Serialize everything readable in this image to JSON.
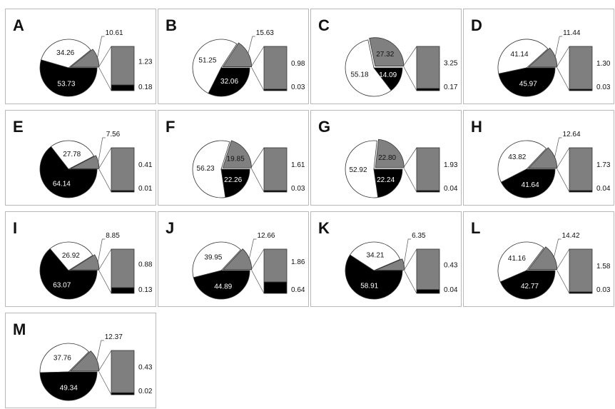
{
  "colors": {
    "black_slice": "#000000",
    "gray_slice": "#808080",
    "white_slice": "#ffffff",
    "bar_gray": "#7f7f7f",
    "bar_black": "#000000",
    "outline": "#333333",
    "panel_border": "#b8b8b8"
  },
  "chart_data": [
    {
      "type": "pie",
      "panel": "A",
      "slices": {
        "white": 34.26,
        "gray": 10.61,
        "black": 53.73
      },
      "bar": {
        "gray": 1.23,
        "black": 0.18
      }
    },
    {
      "type": "pie",
      "panel": "B",
      "slices": {
        "white": 51.25,
        "gray": 15.63,
        "black": 32.06
      },
      "bar": {
        "gray": 0.98,
        "black": 0.03
      }
    },
    {
      "type": "pie",
      "panel": "C",
      "slices": {
        "white": 55.18,
        "gray": 27.32,
        "black": 14.09
      },
      "bar": {
        "gray": 3.25,
        "black": 0.17
      }
    },
    {
      "type": "pie",
      "panel": "D",
      "slices": {
        "white": 41.14,
        "gray": 11.44,
        "black": 45.97
      },
      "bar": {
        "gray": 1.3,
        "black": 0.03
      }
    },
    {
      "type": "pie",
      "panel": "E",
      "slices": {
        "white": 27.78,
        "gray": 7.56,
        "black": 64.14
      },
      "bar": {
        "gray": 0.41,
        "black": 0.01
      }
    },
    {
      "type": "pie",
      "panel": "F",
      "slices": {
        "white": 56.23,
        "gray": 19.85,
        "black": 22.26
      },
      "bar": {
        "gray": 1.61,
        "black": 0.03
      }
    },
    {
      "type": "pie",
      "panel": "G",
      "slices": {
        "white": 52.92,
        "gray": 22.8,
        "black": 22.24
      },
      "bar": {
        "gray": 1.93,
        "black": 0.04
      }
    },
    {
      "type": "pie",
      "panel": "H",
      "slices": {
        "white": 43.82,
        "gray": 12.64,
        "black": 41.64
      },
      "bar": {
        "gray": 1.73,
        "black": 0.04
      }
    },
    {
      "type": "pie",
      "panel": "I",
      "slices": {
        "white": 26.92,
        "gray": 8.85,
        "black": 63.07
      },
      "bar": {
        "gray": 0.88,
        "black": 0.13
      }
    },
    {
      "type": "pie",
      "panel": "J",
      "slices": {
        "white": 39.95,
        "gray": 12.66,
        "black": 44.89
      },
      "bar": {
        "gray": 1.86,
        "black": 0.64
      }
    },
    {
      "type": "pie",
      "panel": "K",
      "slices": {
        "white": 34.21,
        "gray": 6.35,
        "black": 58.91
      },
      "bar": {
        "gray": 0.43,
        "black": 0.04
      }
    },
    {
      "type": "pie",
      "panel": "L",
      "slices": {
        "white": 41.16,
        "gray": 14.42,
        "black": 42.77
      },
      "bar": {
        "gray": 1.58,
        "black": 0.03
      }
    },
    {
      "type": "pie",
      "panel": "M",
      "slices": {
        "white": 37.76,
        "gray": 12.37,
        "black": 49.34
      },
      "bar": {
        "gray": 0.43,
        "black": 0.02
      }
    }
  ]
}
